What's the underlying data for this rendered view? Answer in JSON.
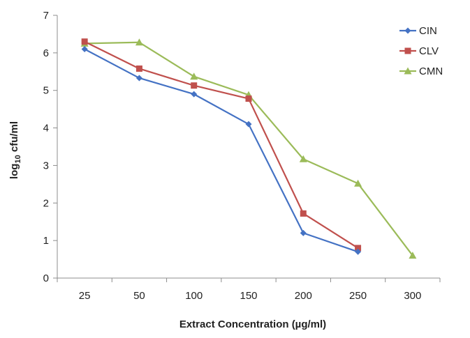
{
  "chart_data": {
    "type": "line",
    "categories": [
      "25",
      "50",
      "100",
      "150",
      "200",
      "250",
      "300"
    ],
    "xlabel": "Extract Concentration (µg/ml)",
    "ylabel": {
      "base": "log",
      "subscript": "10",
      "rest": " cfu/ml"
    },
    "ylim": [
      0,
      7
    ],
    "yticks": [
      "0",
      "1",
      "2",
      "3",
      "4",
      "5",
      "6",
      "7"
    ],
    "grid": false,
    "legend_position": "top-right",
    "series": [
      {
        "name": "CIN",
        "color": "#4472c4",
        "marker": "diamond",
        "values": [
          6.1,
          5.33,
          4.9,
          4.1,
          1.2,
          0.7,
          null
        ]
      },
      {
        "name": "CLV",
        "color": "#c0504d",
        "marker": "square",
        "values": [
          6.3,
          5.58,
          5.13,
          4.78,
          1.72,
          0.8,
          null
        ]
      },
      {
        "name": "CMN",
        "color": "#9bbb59",
        "marker": "triangle",
        "values": [
          6.25,
          6.28,
          5.37,
          4.88,
          3.17,
          2.52,
          0.6
        ]
      }
    ]
  }
}
